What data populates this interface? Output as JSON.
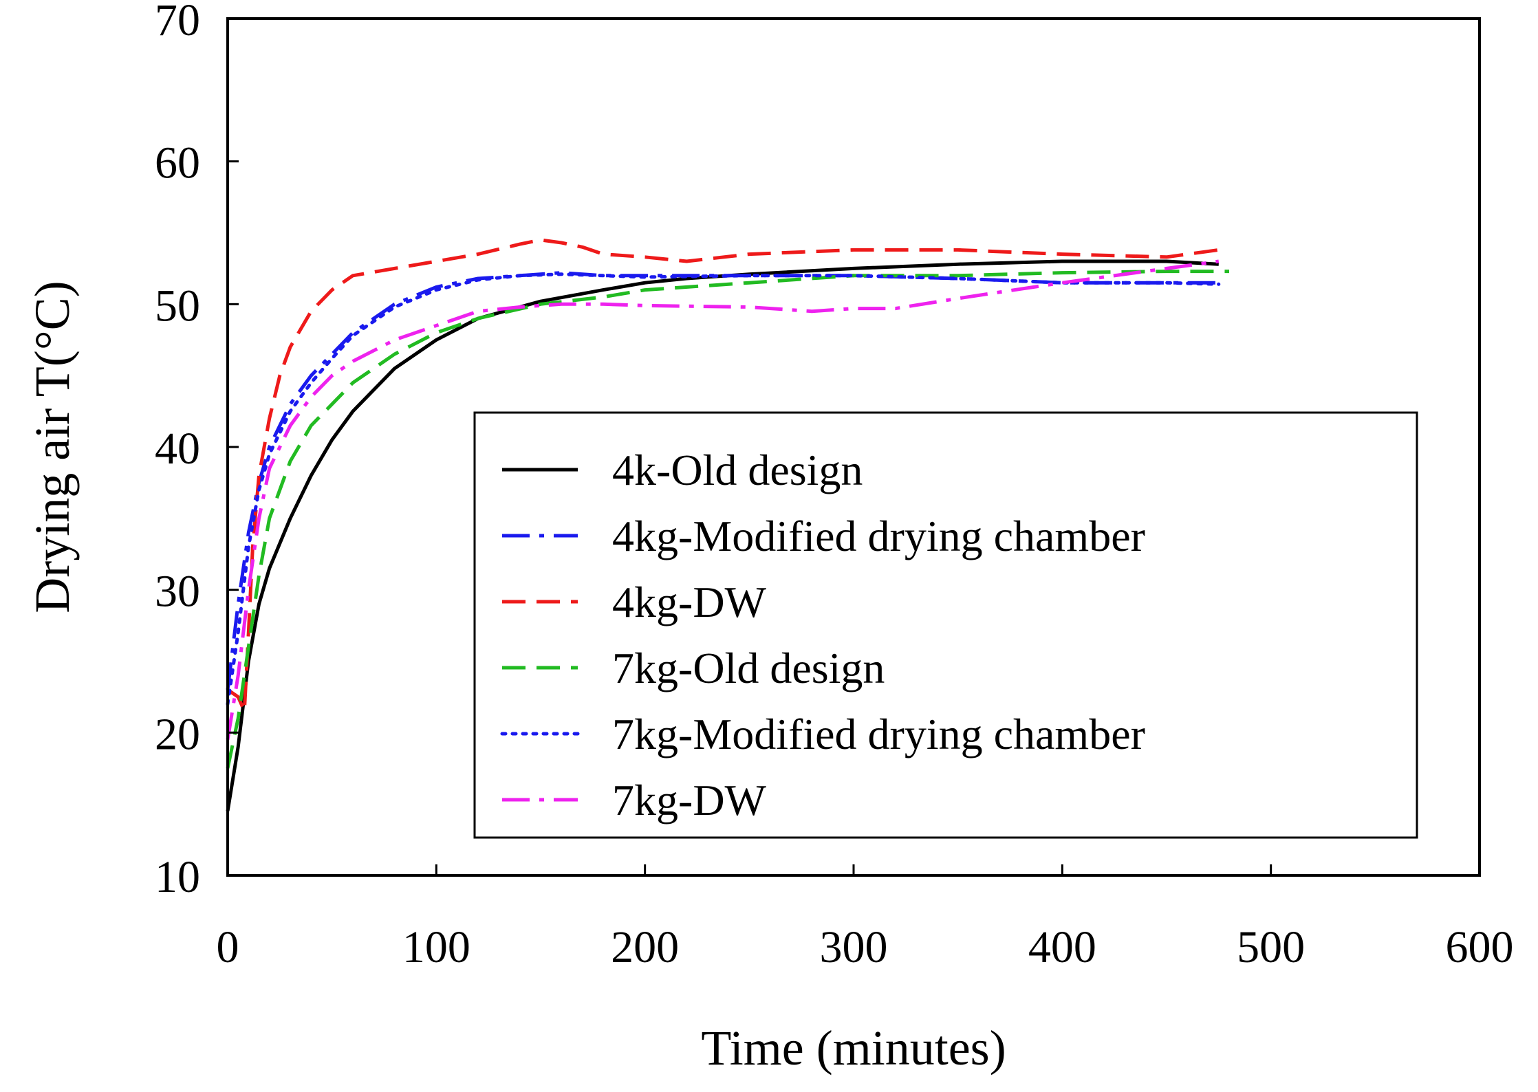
{
  "chart_data": {
    "type": "line",
    "title": "",
    "xlabel": "Time (minutes)",
    "ylabel": "Drying air T(°C)",
    "xlim": [
      0,
      600
    ],
    "ylim": [
      10,
      70
    ],
    "xticks": [
      0,
      100,
      200,
      300,
      400,
      500,
      600
    ],
    "yticks": [
      10,
      20,
      30,
      40,
      50,
      60,
      70
    ],
    "grid": false,
    "legend_position": "inside-lower-right",
    "series": [
      {
        "name": "4k-Old design",
        "color": "#000000",
        "style": "solid",
        "x": [
          0,
          5,
          10,
          15,
          20,
          30,
          40,
          50,
          60,
          80,
          100,
          120,
          150,
          180,
          200,
          220,
          250,
          300,
          350,
          400,
          450,
          475
        ],
        "y": [
          14.5,
          19,
          25,
          29,
          31.5,
          35,
          38,
          40.5,
          42.5,
          45.5,
          47.5,
          49,
          50.2,
          51,
          51.5,
          51.8,
          52.1,
          52.5,
          52.8,
          53,
          53,
          52.8
        ]
      },
      {
        "name": "4kg-Modified drying chamber",
        "color": "#1a1aee",
        "style": "dashdot",
        "x": [
          0,
          5,
          10,
          15,
          20,
          30,
          40,
          50,
          60,
          80,
          100,
          120,
          140,
          160,
          180,
          200,
          250,
          300,
          350,
          400,
          450,
          475
        ],
        "y": [
          23,
          29,
          34,
          37.5,
          40,
          43,
          45,
          46.5,
          48,
          50,
          51.2,
          51.8,
          52,
          52.2,
          52,
          52,
          52,
          52,
          51.8,
          51.5,
          51.5,
          51.5
        ]
      },
      {
        "name": "4kg-DW",
        "color": "#ee1a1a",
        "style": "dashed",
        "x": [
          0,
          5,
          8,
          10,
          12,
          15,
          20,
          25,
          30,
          40,
          50,
          60,
          80,
          100,
          120,
          140,
          150,
          160,
          170,
          180,
          200,
          220,
          250,
          300,
          350,
          400,
          450,
          475
        ],
        "y": [
          23,
          22.5,
          21.5,
          27,
          33,
          38,
          42,
          45,
          47,
          49.5,
          51,
          52,
          52.5,
          53,
          53.5,
          54.2,
          54.5,
          54.3,
          54,
          53.5,
          53.3,
          53,
          53.5,
          53.8,
          53.8,
          53.5,
          53.3,
          53.8
        ]
      },
      {
        "name": "7kg-Old design",
        "color": "#22bb22",
        "style": "dashed",
        "x": [
          0,
          5,
          10,
          15,
          20,
          30,
          40,
          50,
          60,
          80,
          100,
          120,
          150,
          180,
          200,
          250,
          300,
          350,
          400,
          450,
          480
        ],
        "y": [
          17.5,
          21,
          26,
          31,
          35,
          39,
          41.5,
          43,
          44.5,
          46.5,
          48,
          49,
          50,
          50.5,
          51,
          51.5,
          52,
          52,
          52.2,
          52.3,
          52.3
        ]
      },
      {
        "name": "7kg-Modified drying chamber",
        "color": "#1a1aee",
        "style": "dotted",
        "x": [
          0,
          5,
          10,
          15,
          20,
          30,
          40,
          50,
          60,
          80,
          100,
          120,
          140,
          160,
          180,
          200,
          250,
          300,
          350,
          400,
          450,
          475
        ],
        "y": [
          22,
          27,
          33,
          37,
          39.5,
          42.5,
          44.5,
          46.2,
          47.8,
          49.8,
          51,
          51.7,
          52,
          52.1,
          52,
          51.9,
          52,
          52,
          51.8,
          51.5,
          51.5,
          51.4
        ]
      },
      {
        "name": "7kg-DW",
        "color": "#ee22ee",
        "style": "dashdot",
        "x": [
          0,
          5,
          10,
          15,
          20,
          30,
          40,
          50,
          60,
          80,
          100,
          120,
          140,
          160,
          180,
          200,
          250,
          280,
          300,
          320,
          350,
          400,
          450,
          475
        ],
        "y": [
          19.5,
          24,
          30,
          35,
          38.5,
          41.5,
          43.5,
          45,
          46,
          47.5,
          48.5,
          49.5,
          49.8,
          50,
          50,
          49.9,
          49.8,
          49.5,
          49.7,
          49.7,
          50.4,
          51.5,
          52.5,
          53
        ]
      }
    ]
  }
}
